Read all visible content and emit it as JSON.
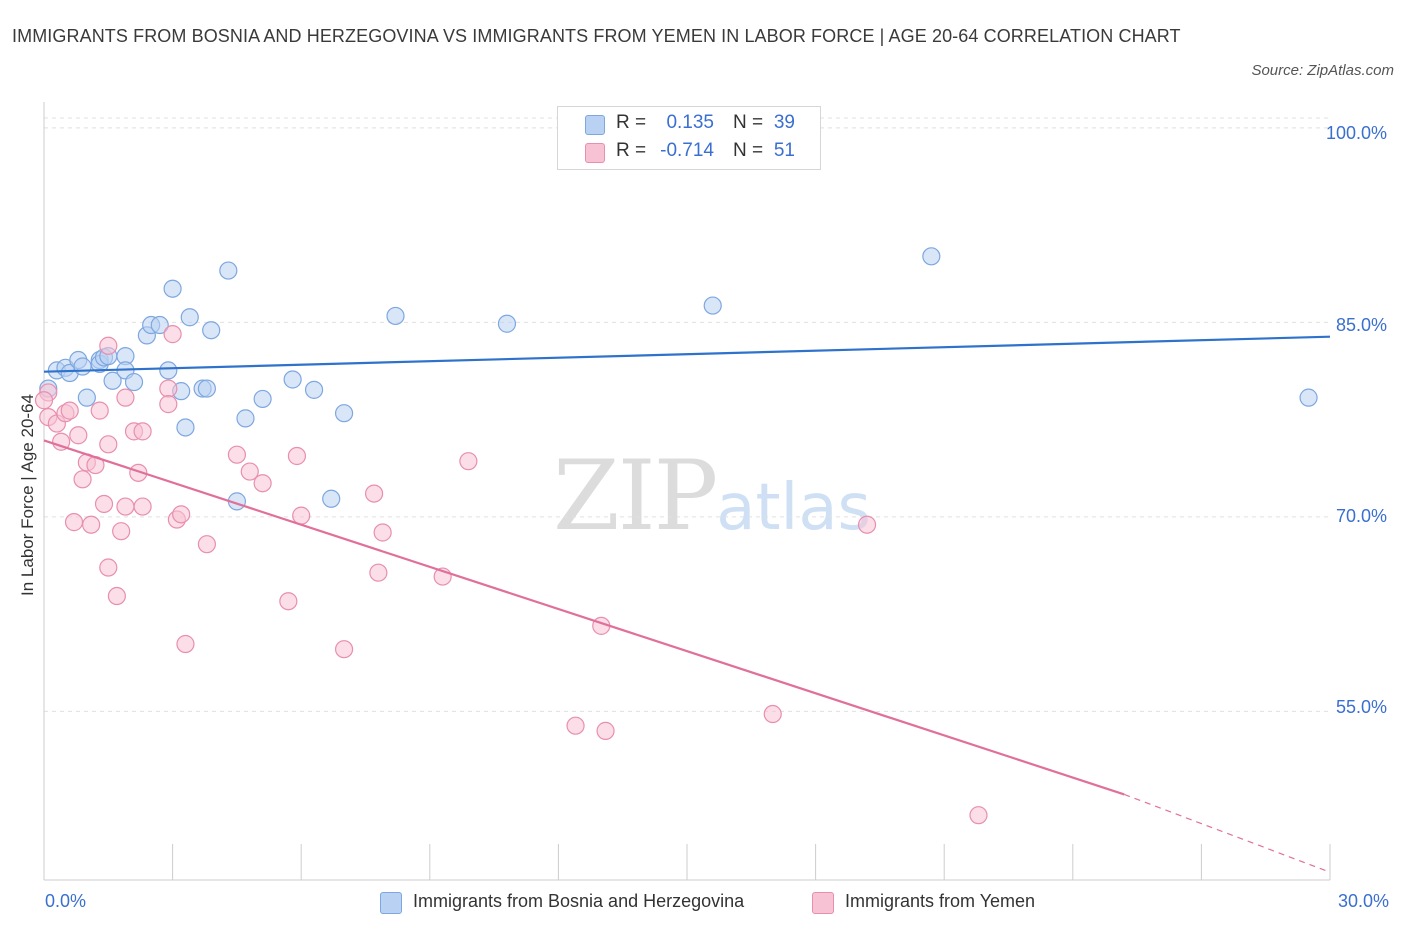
{
  "title": "IMMIGRANTS FROM BOSNIA AND HERZEGOVINA VS IMMIGRANTS FROM YEMEN IN LABOR FORCE | AGE 20-64 CORRELATION CHART",
  "source": "Source: ZipAtlas.com",
  "watermark": {
    "zip": "ZIP",
    "atlas": "atlas"
  },
  "legend": {
    "r_label": "R =",
    "n_label": "N =",
    "rows": [
      {
        "r": "0.135",
        "n": "39"
      },
      {
        "r": "-0.714",
        "n": "51"
      }
    ]
  },
  "colors": {
    "blue_fill": "#b9d2f3",
    "blue_stroke": "#7ea7e0",
    "blue_line": "#2f72cc",
    "pink_fill": "#f7c3d4",
    "pink_stroke": "#e88fae",
    "pink_line": "#e0709a",
    "axis_text": "#3a6fd0",
    "grid": "#e0e0e0"
  },
  "chart_data": {
    "type": "scatter",
    "title": "IMMIGRANTS FROM BOSNIA AND HERZEGOVINA VS IMMIGRANTS FROM YEMEN IN LABOR FORCE | AGE 20-64 CORRELATION CHART",
    "xlabel": "",
    "ylabel": "In Labor Force | Age 20-64",
    "xlim": [
      0,
      30
    ],
    "ylim": [
      42,
      102
    ],
    "x_tick_labels": [
      "0.0%",
      "30.0%"
    ],
    "y_ticks": [
      55,
      70,
      85,
      100
    ],
    "y_tick_labels": [
      "55.0%",
      "70.0%",
      "85.0%",
      "100.0%"
    ],
    "grid": true,
    "legend_placement": "bottom",
    "series": [
      {
        "name": "Immigrants from Bosnia and Herzegovina",
        "color": "#b9d2f3",
        "points": [
          [
            0.1,
            79.9
          ],
          [
            0.3,
            81.3
          ],
          [
            0.5,
            81.5
          ],
          [
            0.6,
            81.1
          ],
          [
            0.8,
            82.1
          ],
          [
            0.9,
            81.6
          ],
          [
            1.0,
            79.2
          ],
          [
            1.3,
            82.1
          ],
          [
            1.3,
            81.8
          ],
          [
            1.4,
            82.3
          ],
          [
            1.5,
            82.4
          ],
          [
            1.6,
            80.5
          ],
          [
            1.9,
            82.4
          ],
          [
            1.9,
            81.3
          ],
          [
            2.1,
            80.4
          ],
          [
            2.4,
            84.0
          ],
          [
            2.5,
            84.8
          ],
          [
            2.7,
            84.8
          ],
          [
            2.9,
            81.3
          ],
          [
            3.0,
            87.6
          ],
          [
            3.2,
            79.7
          ],
          [
            3.3,
            76.9
          ],
          [
            3.4,
            85.4
          ],
          [
            3.7,
            79.9
          ],
          [
            3.8,
            79.9
          ],
          [
            3.9,
            84.4
          ],
          [
            4.3,
            89.0
          ],
          [
            4.5,
            71.2
          ],
          [
            4.7,
            77.6
          ],
          [
            5.1,
            79.1
          ],
          [
            5.8,
            80.6
          ],
          [
            6.3,
            79.8
          ],
          [
            6.7,
            71.4
          ],
          [
            7.0,
            78.0
          ],
          [
            8.2,
            85.5
          ],
          [
            10.8,
            84.9
          ],
          [
            15.6,
            86.3
          ],
          [
            20.7,
            90.1
          ],
          [
            29.5,
            79.2
          ]
        ]
      },
      {
        "name": "Immigrants from Yemen",
        "color": "#f7c3d4",
        "points": [
          [
            0.1,
            77.7
          ],
          [
            0.1,
            79.6
          ],
          [
            0.3,
            77.2
          ],
          [
            0.4,
            75.8
          ],
          [
            0.5,
            78.0
          ],
          [
            0.6,
            78.2
          ],
          [
            0.7,
            69.6
          ],
          [
            0.8,
            76.3
          ],
          [
            0.9,
            72.9
          ],
          [
            1.0,
            74.2
          ],
          [
            1.1,
            69.4
          ],
          [
            1.2,
            74.0
          ],
          [
            1.3,
            78.2
          ],
          [
            1.4,
            71.0
          ],
          [
            1.5,
            75.6
          ],
          [
            1.5,
            83.2
          ],
          [
            1.5,
            66.1
          ],
          [
            1.7,
            63.9
          ],
          [
            1.8,
            68.9
          ],
          [
            1.9,
            70.8
          ],
          [
            1.9,
            79.2
          ],
          [
            2.1,
            76.6
          ],
          [
            2.2,
            73.4
          ],
          [
            2.3,
            76.6
          ],
          [
            2.3,
            70.8
          ],
          [
            2.9,
            79.9
          ],
          [
            2.9,
            78.7
          ],
          [
            3.0,
            84.1
          ],
          [
            3.1,
            69.8
          ],
          [
            3.2,
            70.2
          ],
          [
            3.3,
            60.2
          ],
          [
            3.8,
            67.9
          ],
          [
            4.5,
            74.8
          ],
          [
            4.8,
            73.5
          ],
          [
            5.1,
            72.6
          ],
          [
            5.7,
            63.5
          ],
          [
            5.9,
            74.7
          ],
          [
            6.0,
            70.1
          ],
          [
            7.0,
            59.8
          ],
          [
            7.7,
            71.8
          ],
          [
            7.8,
            65.7
          ],
          [
            7.9,
            68.8
          ],
          [
            9.3,
            65.4
          ],
          [
            9.9,
            74.3
          ],
          [
            12.4,
            53.9
          ],
          [
            13.0,
            61.6
          ],
          [
            13.1,
            53.5
          ],
          [
            17.0,
            54.8
          ],
          [
            19.2,
            69.4
          ],
          [
            21.8,
            47.0
          ],
          [
            0.0,
            79.0
          ]
        ]
      }
    ],
    "trendlines": [
      {
        "series": "Immigrants from Bosnia and Herzegovina",
        "x": [
          0,
          30
        ],
        "y": [
          81.2,
          83.9
        ],
        "style": "solid"
      },
      {
        "series": "Immigrants from Yemen",
        "x": [
          0,
          25.2
        ],
        "y": [
          75.9,
          48.6
        ],
        "style": "solid"
      },
      {
        "series": "Immigrants from Yemen",
        "x": [
          25.2,
          30
        ],
        "y": [
          48.6,
          42.6
        ],
        "style": "dashed"
      }
    ]
  },
  "bottom_legend": [
    "Immigrants from Bosnia and Herzegovina",
    "Immigrants from Yemen"
  ]
}
